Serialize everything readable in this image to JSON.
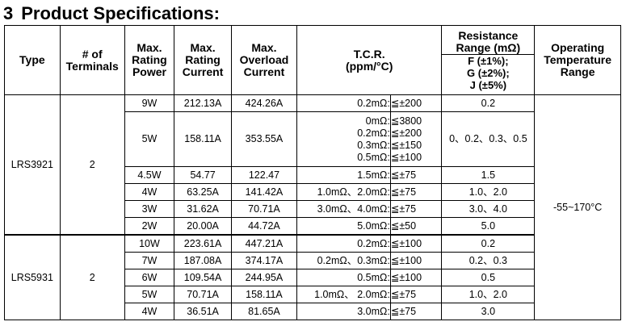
{
  "title": {
    "number": "3",
    "text": "Product Specifications:"
  },
  "headers": {
    "type": "Type",
    "terminals": [
      "# of",
      "Terminals"
    ],
    "power": [
      "Max.",
      "Rating",
      "Power"
    ],
    "current": [
      "Max.",
      "Rating",
      "Current"
    ],
    "overload": [
      "Max.",
      "Overload",
      "Current"
    ],
    "tcr": [
      "T.C.R.",
      "(ppm/°C)"
    ],
    "resistance": [
      "Resistance",
      "Range (mΩ)"
    ],
    "resistance_grades": [
      "F (±1%);",
      "G (±2%);",
      "J (±5%)"
    ],
    "temperature": [
      "Operating",
      "Temperature",
      "Range"
    ]
  },
  "operating_temperature": "-55~170°C",
  "groups": [
    {
      "type": "LRS3921",
      "terminals": "2",
      "rows": [
        {
          "power": "9W",
          "current": "212.13A",
          "overload": "424.26A",
          "tcr": [
            [
              "0.2mΩ:",
              "≦±200"
            ]
          ],
          "resistance": "0.2"
        },
        {
          "power": "5W",
          "current": "158.11A",
          "overload": "353.55A",
          "tcr": [
            [
              "0mΩ:",
              "≦3800"
            ],
            [
              "0.2mΩ:",
              "≦±200"
            ],
            [
              "0.3mΩ:",
              "≦±150"
            ],
            [
              "0.5mΩ:",
              "≦±100"
            ]
          ],
          "resistance": "0、0.2、0.3、0.5"
        },
        {
          "power": "4.5W",
          "current": "54.77",
          "overload": "122.47",
          "tcr": [
            [
              "1.5mΩ:",
              "≦±75"
            ]
          ],
          "resistance": "1.5"
        },
        {
          "power": "4W",
          "current": "63.25A",
          "overload": "141.42A",
          "tcr": [
            [
              "1.0mΩ、2.0mΩ:",
              "≦±75"
            ]
          ],
          "resistance": "1.0、2.0"
        },
        {
          "power": "3W",
          "current": "31.62A",
          "overload": "70.71A",
          "tcr": [
            [
              "3.0mΩ、4.0mΩ:",
              "≦±75"
            ]
          ],
          "resistance": "3.0、4.0"
        },
        {
          "power": "2W",
          "current": "20.00A",
          "overload": "44.72A",
          "tcr": [
            [
              "5.0mΩ:",
              "≦±50"
            ]
          ],
          "resistance": "5.0"
        }
      ]
    },
    {
      "type": "LRS5931",
      "terminals": "2",
      "rows": [
        {
          "power": "10W",
          "current": "223.61A",
          "overload": "447.21A",
          "tcr": [
            [
              "0.2mΩ:",
              "≦±100"
            ]
          ],
          "resistance": "0.2"
        },
        {
          "power": "7W",
          "current": "187.08A",
          "overload": "374.17A",
          "tcr": [
            [
              "0.2mΩ、0.3mΩ:",
              "≦±100"
            ]
          ],
          "resistance": "0.2、0.3"
        },
        {
          "power": "6W",
          "current": "109.54A",
          "overload": "244.95A",
          "tcr": [
            [
              "0.5mΩ:",
              "≦±100"
            ]
          ],
          "resistance": "0.5"
        },
        {
          "power": "5W",
          "current": "70.71A",
          "overload": "158.11A",
          "tcr": [
            [
              "1.0mΩ、 2.0mΩ:",
              "≦±75"
            ]
          ],
          "resistance": "1.0、2.0"
        },
        {
          "power": "4W",
          "current": "36.51A",
          "overload": "81.65A",
          "tcr": [
            [
              "3.0mΩ:",
              "≦±75"
            ]
          ],
          "resistance": "3.0"
        }
      ]
    }
  ]
}
